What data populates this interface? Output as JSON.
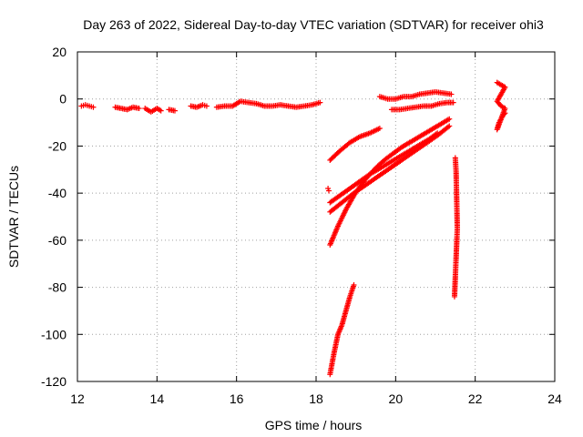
{
  "chart_data": {
    "type": "scatter",
    "title": "Day 263 of 2022, Sidereal Day-to-day VTEC variation (SDTVAR) for receiver ohi3",
    "xlabel": "GPS time / hours",
    "ylabel": "SDTVAR / TECUs",
    "xlim": [
      12,
      24
    ],
    "ylim": [
      -120,
      20
    ],
    "xticks": [
      "12",
      "14",
      "16",
      "18",
      "20",
      "22",
      "24"
    ],
    "yticks": [
      "20",
      "0",
      "-20",
      "-40",
      "-60",
      "-80",
      "-100",
      "-120"
    ],
    "grid": true,
    "marker": "+",
    "color": "#ff0000",
    "series": [
      {
        "x": [
          12.1,
          12.2,
          12.3,
          12.4
        ],
        "y": [
          -3,
          -2.5,
          -3,
          -3.5
        ]
      },
      {
        "x": [
          12.95,
          13.1,
          13.25,
          13.4,
          13.55
        ],
        "y": [
          -3.5,
          -4,
          -4.5,
          -3.5,
          -4
        ]
      },
      {
        "x": [
          13.7,
          13.85,
          14.0,
          14.1
        ],
        "y": [
          -4,
          -5.5,
          -4,
          -5
        ]
      },
      {
        "x": [
          14.3,
          14.45
        ],
        "y": [
          -4.5,
          -5
        ]
      },
      {
        "x": [
          14.85,
          15.0,
          15.15,
          15.25
        ],
        "y": [
          -3,
          -3.5,
          -2.5,
          -3
        ]
      },
      {
        "x": [
          15.5,
          15.7,
          15.9,
          16.1,
          16.3,
          16.5,
          16.7,
          16.9,
          17.1,
          17.3,
          17.5,
          17.7,
          17.9,
          18.1
        ],
        "y": [
          -3.5,
          -3,
          -3,
          -1,
          -1.5,
          -2,
          -3,
          -3,
          -2.5,
          -3,
          -3.5,
          -3,
          -2.5,
          -1.5
        ]
      },
      {
        "x": [
          19.6,
          19.8,
          20.0,
          20.2,
          20.4,
          20.6,
          20.8,
          21.0,
          21.2,
          21.4
        ],
        "y": [
          1,
          0,
          0,
          1,
          1,
          2,
          2.5,
          3,
          2.5,
          2
        ]
      },
      {
        "x": [
          19.9,
          20.1,
          20.3,
          20.5,
          20.7,
          20.9,
          21.1,
          21.3,
          21.45
        ],
        "y": [
          -4.5,
          -4.5,
          -4,
          -3.5,
          -3,
          -3,
          -2,
          -1.5,
          -1.5
        ]
      },
      {
        "x": [
          18.35,
          18.6,
          18.85,
          19.1,
          19.35,
          19.6
        ],
        "y": [
          -26,
          -22,
          -18.5,
          -16,
          -14.5,
          -12.5
        ]
      },
      {
        "x": [
          18.3,
          18.32
        ],
        "y": [
          -38,
          -39
        ]
      },
      {
        "x": [
          18.35,
          18.6,
          18.85,
          19.1,
          19.35,
          19.6,
          19.85,
          20.1,
          20.35,
          20.6,
          20.85,
          21.05
        ],
        "y": [
          -44,
          -41,
          -38,
          -35,
          -32,
          -29.5,
          -27,
          -24.5,
          -22,
          -19.5,
          -17,
          -14.5
        ]
      },
      {
        "x": [
          18.35,
          18.65,
          18.95,
          19.25,
          19.55,
          19.85,
          20.15,
          20.45,
          20.75,
          21.05,
          21.35
        ],
        "y": [
          -48,
          -44,
          -40,
          -36.5,
          -33,
          -29.5,
          -26,
          -22.5,
          -19,
          -15.5,
          -11.5
        ]
      },
      {
        "x": [
          18.35,
          18.55,
          18.75,
          18.95,
          19.15,
          19.35,
          19.55,
          19.75,
          19.95,
          20.15,
          20.35,
          20.55,
          20.75,
          20.95,
          21.15,
          21.35
        ],
        "y": [
          -62,
          -54,
          -47,
          -41,
          -36,
          -32,
          -28.5,
          -25.5,
          -23,
          -20.5,
          -18.5,
          -16.5,
          -14.5,
          -12.5,
          -10.5,
          -8.5
        ]
      },
      {
        "x": [
          18.35,
          18.45,
          18.55,
          18.65,
          18.75,
          18.85,
          18.95
        ],
        "y": [
          -117,
          -108,
          -100,
          -96,
          -90,
          -84,
          -79
        ]
      },
      {
        "x": [
          21.5,
          21.52,
          21.55,
          21.48
        ],
        "y": [
          -25,
          -31,
          -55,
          -84
        ]
      },
      {
        "x": [
          22.55,
          22.65,
          22.75,
          22.55,
          22.65,
          22.75,
          22.55,
          22.6,
          22.7,
          22.75
        ],
        "y": [
          7,
          6,
          5,
          -1,
          -3,
          -4,
          -13,
          -10,
          -7,
          -6
        ]
      }
    ]
  }
}
